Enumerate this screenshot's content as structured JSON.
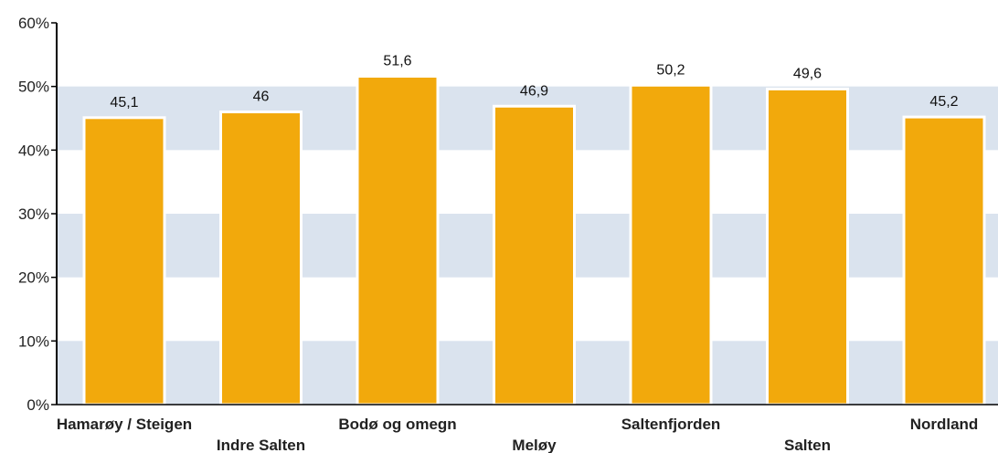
{
  "chart_data": {
    "type": "bar",
    "categories": [
      "Hamarøy / Steigen",
      "Indre Salten",
      "Bodø og omegn",
      "Meløy",
      "Saltenfjorden",
      "Salten",
      "Nordland"
    ],
    "values": [
      45.1,
      46,
      51.6,
      46.9,
      50.2,
      49.6,
      45.2
    ],
    "value_labels": [
      "45,1",
      "46",
      "51,6",
      "46,9",
      "50,2",
      "49,6",
      "45,2"
    ],
    "title": "",
    "xlabel": "",
    "ylabel": "",
    "ylim": [
      0,
      60
    ],
    "yticks": [
      0,
      10,
      20,
      30,
      40,
      50,
      60
    ],
    "ytick_labels": [
      "0%",
      "10%",
      "20%",
      "30%",
      "40%",
      "50%",
      "60%"
    ],
    "grid": "alternating horizontal bands",
    "legend": "none",
    "colors": {
      "bar": "#F2A90C",
      "bar_edge": "#ffffff",
      "band": "#DAE3EE",
      "axis": "#000000"
    }
  }
}
